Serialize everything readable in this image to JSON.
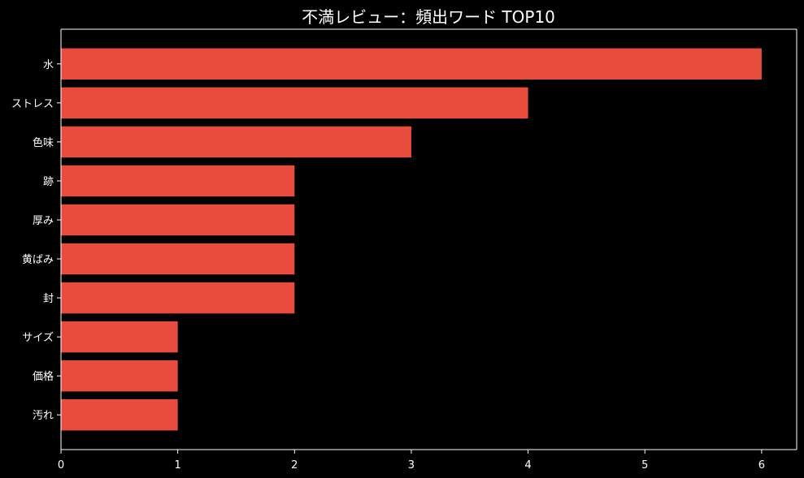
{
  "chart_data": {
    "type": "bar",
    "orientation": "horizontal",
    "title": "不満レビュー：頻出ワード TOP10",
    "categories": [
      "水",
      "ストレス",
      "色味",
      "跡",
      "厚み",
      "黄ばみ",
      "封",
      "サイズ",
      "価格",
      "汚れ"
    ],
    "values": [
      6,
      4,
      3,
      2,
      2,
      2,
      2,
      1,
      1,
      1
    ],
    "xlim": [
      0,
      6.3
    ],
    "xticks": [
      "0",
      "1",
      "2",
      "3",
      "4",
      "5",
      "6"
    ],
    "xlabel": "",
    "ylabel": "",
    "grid": false,
    "colors": {
      "background": "#000000",
      "bar": "#e74c3c",
      "axis": "#ffffff",
      "text": "#ffffff"
    }
  }
}
